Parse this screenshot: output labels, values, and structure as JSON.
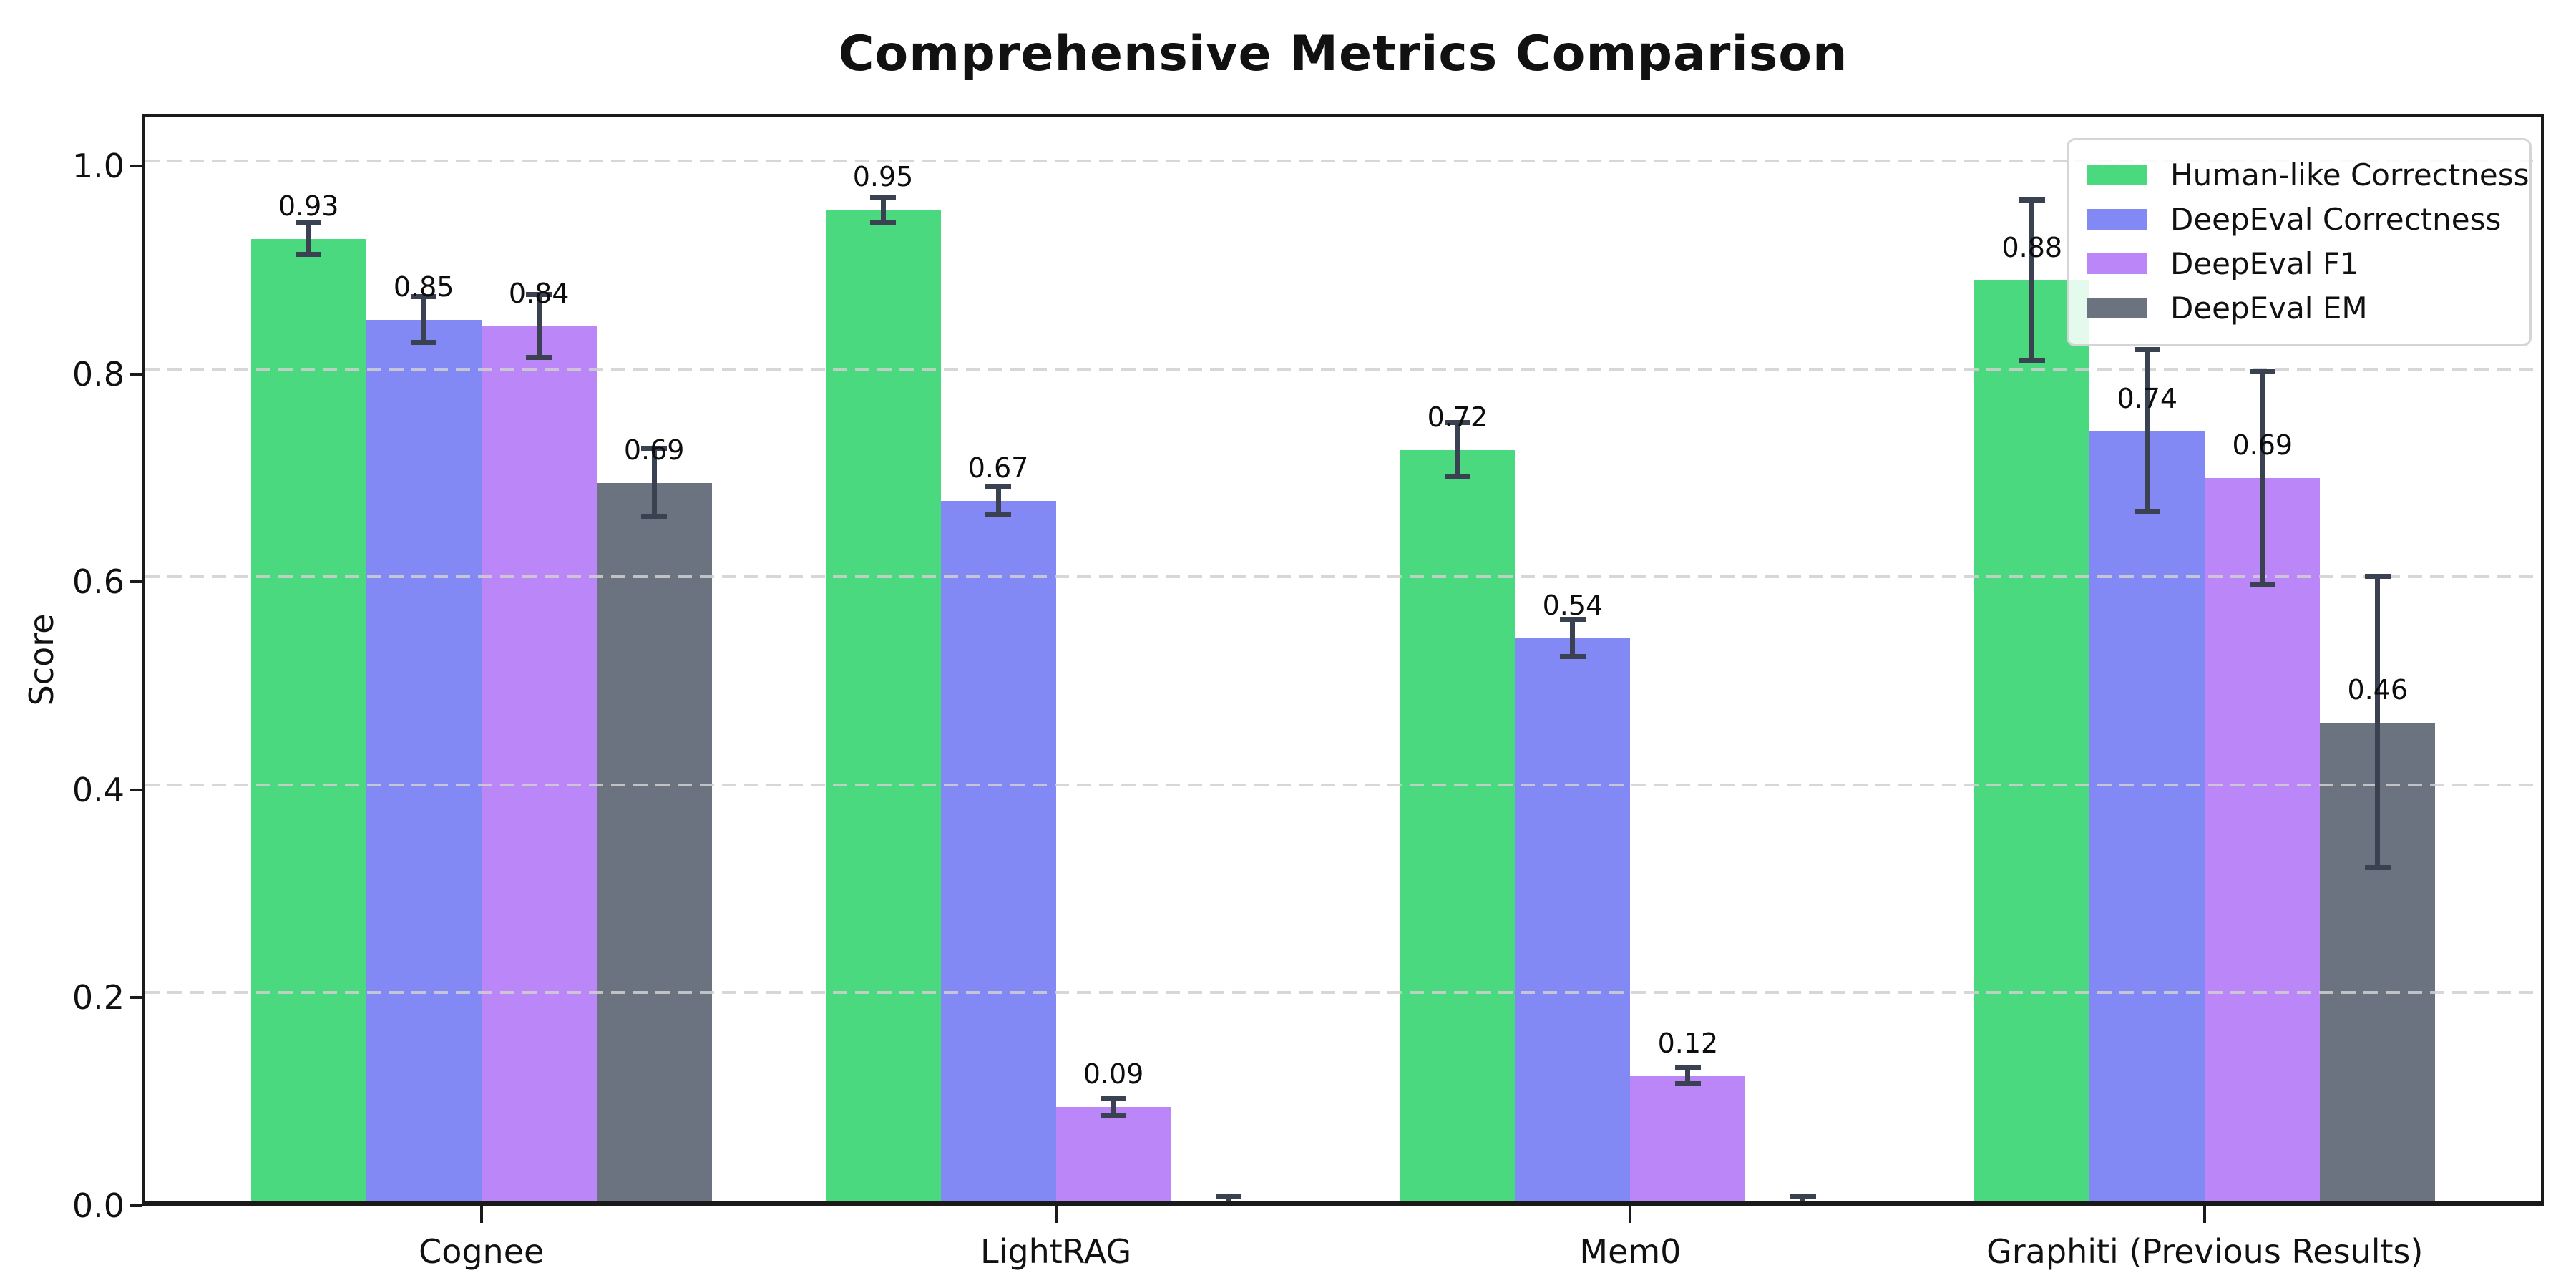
{
  "chart_data": {
    "type": "bar",
    "title": "Comprehensive Metrics Comparison",
    "ylabel": "Score",
    "xlabel": "",
    "categories": [
      "Cognee",
      "LightRAG",
      "Mem0",
      "Graphiti (Previous Results)"
    ],
    "yticks": [
      0.0,
      0.2,
      0.4,
      0.6,
      0.8,
      1.0
    ],
    "ytick_labels": [
      "0.0",
      "0.2",
      "0.4",
      "0.6",
      "0.8",
      "1.0"
    ],
    "ylim": [
      0,
      1.05
    ],
    "xlim": [
      -0.59,
      3.59
    ],
    "bar_width": 0.2,
    "grid": "dashed-horizontal",
    "grid_color": "#d0d0d0",
    "axis_color": "#1a1a1a",
    "error_bar_color": "#3a4252",
    "legend_position": "upper right",
    "series": [
      {
        "name": "Human-like Correctness",
        "color": "#4bd980",
        "values": [
          0.925,
          0.953,
          0.722,
          0.885
        ],
        "errors": [
          0.015,
          0.012,
          0.026,
          0.077
        ],
        "labels": [
          "0.93",
          "0.95",
          "0.72",
          "0.88"
        ]
      },
      {
        "name": "DeepEval Correctness",
        "color": "#8289f5",
        "values": [
          0.847,
          0.673,
          0.541,
          0.74
        ],
        "errors": [
          0.022,
          0.013,
          0.018,
          0.078
        ],
        "labels": [
          "0.85",
          "0.67",
          "0.54",
          "0.74"
        ]
      },
      {
        "name": "DeepEval F1",
        "color": "#bb86f8",
        "values": [
          0.841,
          0.09,
          0.12,
          0.695
        ],
        "errors": [
          0.03,
          0.008,
          0.008,
          0.103
        ],
        "labels": [
          "0.84",
          "0.09",
          "0.12",
          "0.69"
        ]
      },
      {
        "name": "DeepEval EM",
        "color": "#6b7280",
        "values": [
          0.69,
          0.0,
          0.0,
          0.46
        ],
        "errors": [
          0.033,
          0.004,
          0.004,
          0.14
        ],
        "labels": [
          "0.69",
          "",
          "",
          "0.46"
        ]
      }
    ]
  }
}
